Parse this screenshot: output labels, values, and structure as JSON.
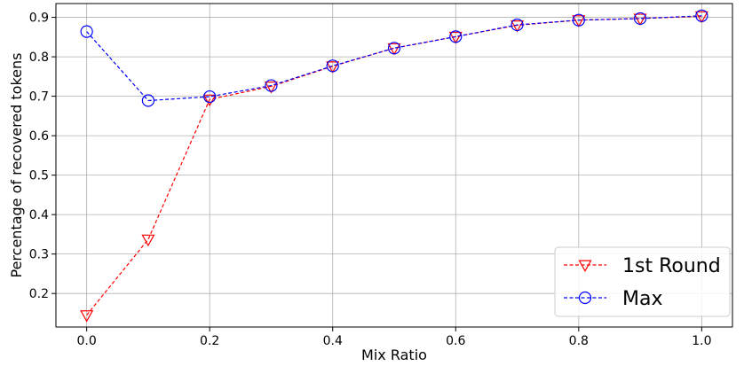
{
  "chart_data": {
    "type": "line",
    "xlabel": "Mix Ratio",
    "ylabel": "Percentage of recovered tokens",
    "xlim": [
      -0.05,
      1.05
    ],
    "ylim": [
      0.115,
      0.935
    ],
    "xticks": [
      "0.0",
      "0.2",
      "0.4",
      "0.6",
      "0.8",
      "1.0"
    ],
    "yticks": [
      "0.2",
      "0.3",
      "0.4",
      "0.5",
      "0.6",
      "0.7",
      "0.8",
      "0.9"
    ],
    "grid": true,
    "legend_position": "bottom-right",
    "x": [
      0.0,
      0.1,
      0.2,
      0.3,
      0.4,
      0.5,
      0.6,
      0.7,
      0.8,
      0.9,
      1.0
    ],
    "series": [
      {
        "name": "1st Round",
        "color": "#ff0000",
        "marker": "triangle-down",
        "line_style": "dashed",
        "values": [
          0.145,
          0.337,
          0.692,
          0.725,
          0.776,
          0.822,
          0.851,
          0.88,
          0.893,
          0.897,
          0.903
        ]
      },
      {
        "name": "Max",
        "color": "#0000ff",
        "marker": "circle",
        "line_style": "dashed",
        "values": [
          0.864,
          0.689,
          0.699,
          0.727,
          0.777,
          0.822,
          0.851,
          0.881,
          0.893,
          0.897,
          0.904
        ]
      }
    ]
  }
}
